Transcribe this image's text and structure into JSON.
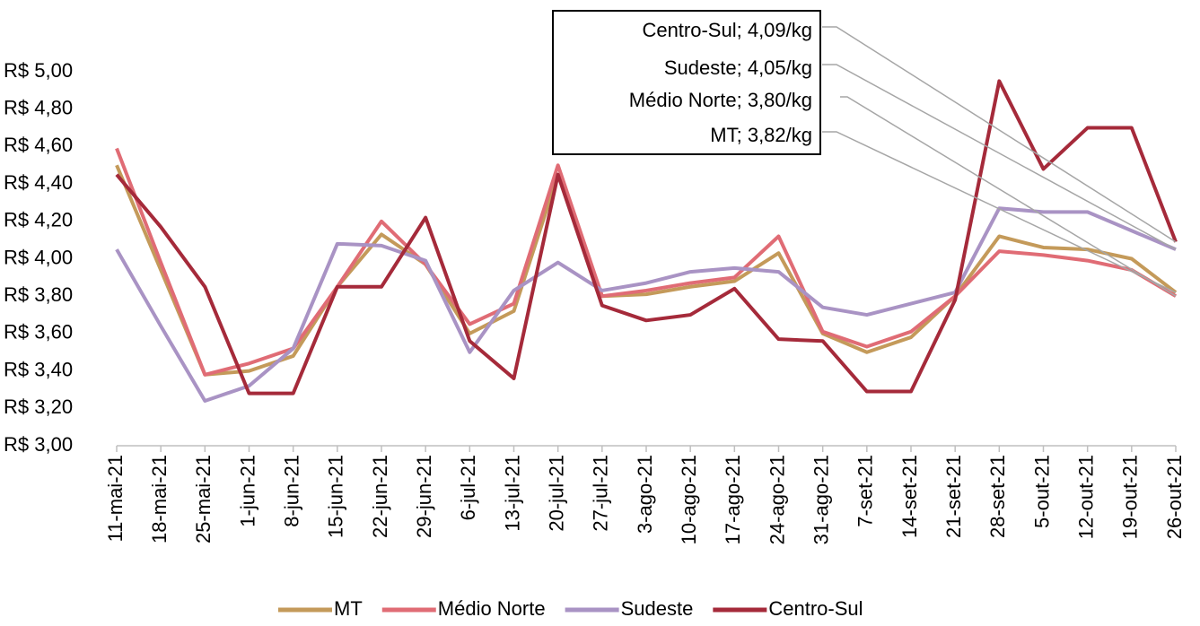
{
  "chart_data": {
    "type": "line",
    "categories": [
      "11-mai-21",
      "18-mai-21",
      "25-mai-21",
      "1-jun-21",
      "8-jun-21",
      "15-jun-21",
      "22-jun-21",
      "29-jun-21",
      "6-jul-21",
      "13-jul-21",
      "20-jul-21",
      "27-jul-21",
      "3-ago-21",
      "10-ago-21",
      "17-ago-21",
      "24-ago-21",
      "31-ago-21",
      "7-set-21",
      "14-set-21",
      "21-set-21",
      "28-set-21",
      "5-out-21",
      "12-out-21",
      "19-out-21",
      "26-out-21"
    ],
    "series": [
      {
        "name": "MT",
        "color": "#c49a5a",
        "values": [
          4.5,
          3.94,
          3.38,
          3.4,
          3.48,
          3.85,
          4.13,
          3.97,
          3.6,
          3.72,
          4.45,
          3.8,
          3.81,
          3.85,
          3.88,
          4.03,
          3.6,
          3.5,
          3.58,
          3.8,
          4.12,
          4.06,
          4.05,
          4.0,
          3.82
        ]
      },
      {
        "name": "Médio Norte",
        "color": "#e06c75",
        "values": [
          4.59,
          3.98,
          3.38,
          3.44,
          3.52,
          3.85,
          4.2,
          3.97,
          3.65,
          3.76,
          4.5,
          3.8,
          3.83,
          3.87,
          3.9,
          4.12,
          3.61,
          3.53,
          3.61,
          3.8,
          4.04,
          4.02,
          3.99,
          3.94,
          3.8
        ]
      },
      {
        "name": "Sudeste",
        "color": "#a993c4",
        "values": [
          4.05,
          3.64,
          3.24,
          3.32,
          3.52,
          4.08,
          4.07,
          3.99,
          3.5,
          3.83,
          3.98,
          3.83,
          3.87,
          3.93,
          3.95,
          3.93,
          3.74,
          3.7,
          3.76,
          3.82,
          4.27,
          4.25,
          4.25,
          4.15,
          4.05
        ]
      },
      {
        "name": "Centro-Sul",
        "color": "#a52a3a",
        "values": [
          4.45,
          4.17,
          3.85,
          3.28,
          3.28,
          3.85,
          3.85,
          4.22,
          3.56,
          3.36,
          4.45,
          3.75,
          3.67,
          3.7,
          3.84,
          3.57,
          3.56,
          3.29,
          3.29,
          3.78,
          4.95,
          4.48,
          4.7,
          4.7,
          4.09
        ]
      }
    ],
    "ylim": [
      3,
      5
    ],
    "yticks": [
      {
        "value": 3,
        "label": "R$ 3,00"
      },
      {
        "value": 3.2,
        "label": "R$ 3,20"
      },
      {
        "value": 3.4,
        "label": "R$ 3,40"
      },
      {
        "value": 3.6,
        "label": "R$ 3,60"
      },
      {
        "value": 3.8,
        "label": "R$ 3,80"
      },
      {
        "value": 4,
        "label": "R$ 4,00"
      },
      {
        "value": 4.2,
        "label": "R$ 4,20"
      },
      {
        "value": 4.4,
        "label": "R$ 4,40"
      },
      {
        "value": 4.6,
        "label": "R$ 4,60"
      },
      {
        "value": 4.8,
        "label": "R$ 4,80"
      },
      {
        "value": 5,
        "label": "R$ 5,00"
      }
    ],
    "grid": false,
    "legend": "bottom",
    "annotations": [
      "Centro-Sul; 4,09/kg",
      "Sudeste; 4,05/kg",
      "Médio Norte; 3,80/kg",
      "MT; 3,82/kg"
    ]
  }
}
